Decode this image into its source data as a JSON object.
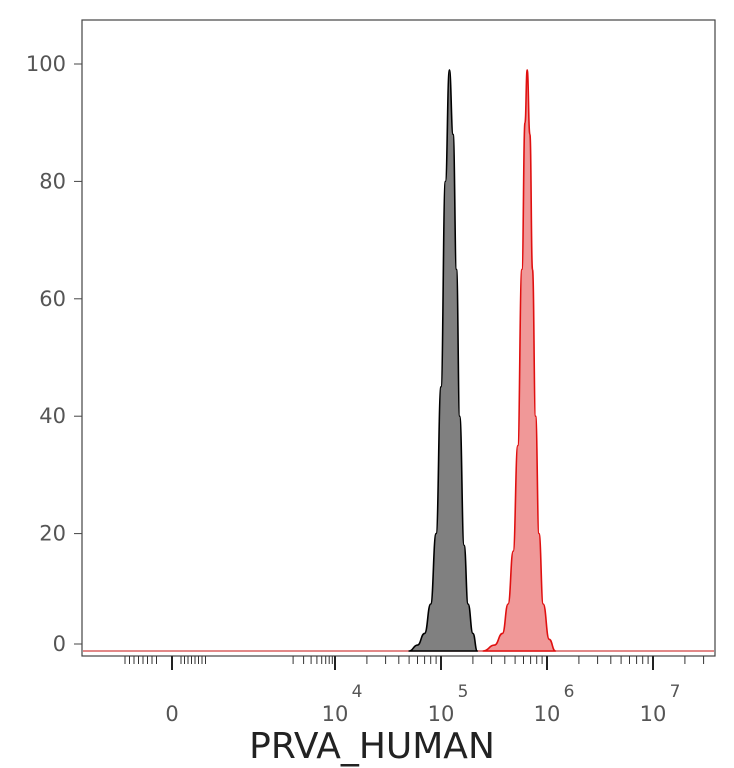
{
  "chart_data": {
    "type": "area",
    "title": "",
    "xlabel": "PRVA_HUMAN",
    "ylabel": "",
    "x_scale": "biexponential",
    "ylim": [
      0,
      100
    ],
    "yticks": [
      0,
      20,
      40,
      60,
      80,
      100
    ],
    "xticks": [
      {
        "value": 0,
        "base": "0",
        "exp": ""
      },
      {
        "value": 10000,
        "base": "10",
        "exp": "4"
      },
      {
        "value": 100000,
        "base": "10",
        "exp": "5"
      },
      {
        "value": 1000000,
        "base": "10",
        "exp": "6"
      },
      {
        "value": 10000000,
        "base": "10",
        "exp": "7"
      }
    ],
    "grid": false,
    "legend": "none",
    "series": [
      {
        "fill": "#808080",
        "stroke": "#000000",
        "peak_x": 120000,
        "peak_y": 99,
        "x": [
          50000,
          60000,
          70000,
          80000,
          90000,
          100000,
          110000,
          120000,
          130000,
          140000,
          150000,
          165000,
          180000,
          200000,
          220000
        ],
        "y": [
          0,
          1,
          3,
          8,
          20,
          45,
          80,
          99,
          88,
          65,
          40,
          18,
          8,
          3,
          0
        ]
      },
      {
        "fill": "#f09898",
        "stroke": "#e01010",
        "peak_x": 650000,
        "peak_y": 99,
        "x": [
          250000,
          320000,
          380000,
          430000,
          480000,
          530000,
          580000,
          620000,
          650000,
          690000,
          730000,
          780000,
          840000,
          920000,
          1050000,
          1200000
        ],
        "y": [
          0,
          1,
          3,
          8,
          17,
          35,
          65,
          90,
          99,
          88,
          65,
          40,
          20,
          8,
          2,
          0
        ]
      }
    ]
  }
}
